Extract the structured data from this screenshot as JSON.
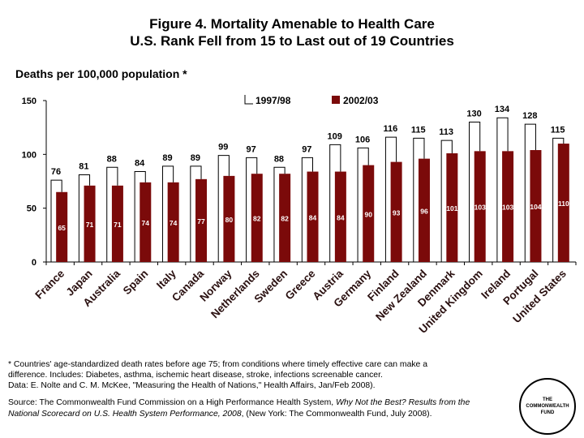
{
  "title_line1": "Figure 4. Mortality Amenable to Health Care",
  "title_line2": "U.S. Rank Fell from 15 to Last out of 19 Countries",
  "chart_data": {
    "type": "bar",
    "ylabel": "Deaths per 100,000 population *",
    "ylim": [
      0,
      150
    ],
    "yticks": [
      0,
      50,
      100,
      150
    ],
    "legend_placement": "top",
    "categories": [
      "France",
      "Japan",
      "Australia",
      "Spain",
      "Italy",
      "Canada",
      "Norway",
      "Netherlands",
      "Sweden",
      "Greece",
      "Austria",
      "Germany",
      "Finland",
      "New Zealand",
      "Denmark",
      "United Kingdom",
      "Ireland",
      "Portugal",
      "United States"
    ],
    "series": [
      {
        "name": "1997/98",
        "style": "bracket-line",
        "color": "#000000",
        "values": [
          76,
          81,
          88,
          84,
          89,
          89,
          99,
          97,
          88,
          97,
          109,
          106,
          116,
          115,
          113,
          130,
          134,
          128,
          115
        ]
      },
      {
        "name": "2002/03",
        "style": "bar",
        "color": "#7b0a0a",
        "values": [
          65,
          71,
          71,
          74,
          74,
          77,
          80,
          82,
          82,
          84,
          84,
          90,
          93,
          96,
          101,
          103,
          103,
          104,
          110
        ]
      }
    ]
  },
  "notes": {
    "line1": "* Countries' age-standardized death rates before age 75; from conditions where timely effective care can make a",
    "line2": "difference. Includes:  Diabetes, asthma, ischemic heart disease,  stroke, infections screenable cancer.",
    "line3": "Data: E. Nolte and C. M. McKee, \"Measuring the Health of Nations,\" Health Affairs, Jan/Feb 2008)."
  },
  "source": {
    "prefix": "Source: The Commonwealth Fund Commission on a High Performance Health System, ",
    "title": "Why Not the Best? Results from the National Scorecard on U.S. Health System Performance, 2008",
    "suffix": ", (New York: The Commonwealth Fund, July 2008)."
  },
  "logo": {
    "line1": "THE",
    "line2": "COMMONWEALTH",
    "line3": "FUND"
  }
}
